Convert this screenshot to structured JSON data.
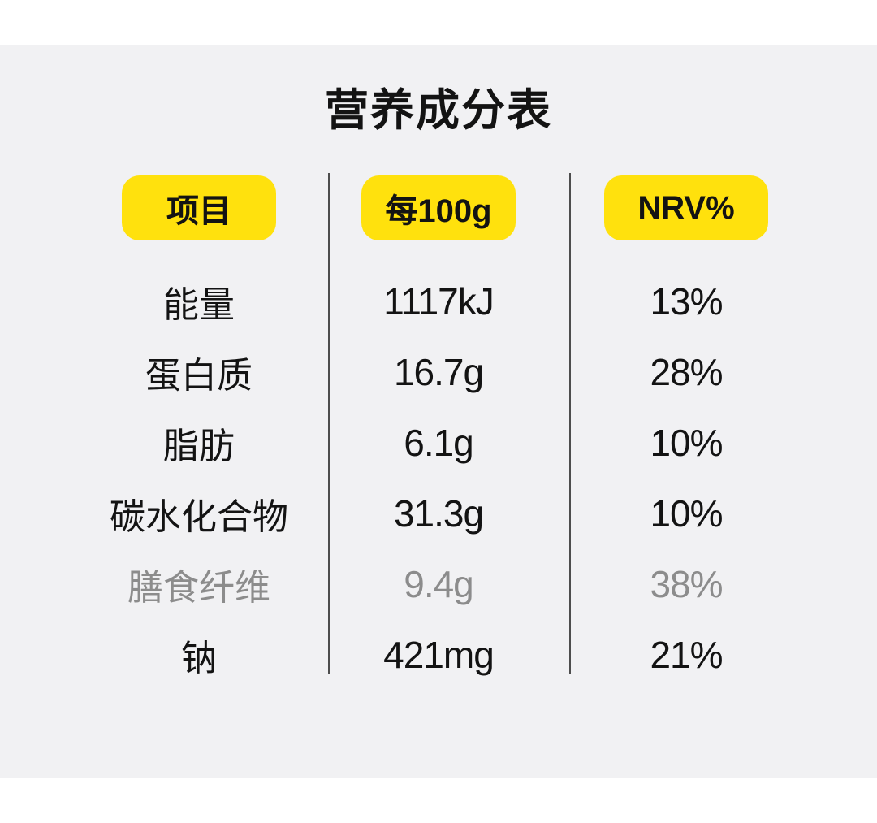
{
  "title": "营养成分表",
  "colors": {
    "accent_yellow": "#ffe10d",
    "panel_background": "#f1f1f3",
    "text": "#131313",
    "muted_text": "#8c8c8c",
    "divider": "#4d4d4d"
  },
  "table": {
    "headers": [
      {
        "label": "项目"
      },
      {
        "label": "每100g"
      },
      {
        "label": "NRV%"
      }
    ],
    "rows": [
      {
        "name": "能量",
        "per100g": "1117kJ",
        "nrv": "13%",
        "muted": false
      },
      {
        "name": "蛋白质",
        "per100g": "16.7g",
        "nrv": "28%",
        "muted": false
      },
      {
        "name": "脂肪",
        "per100g": "6.1g",
        "nrv": "10%",
        "muted": false
      },
      {
        "name": "碳水化合物",
        "per100g": "31.3g",
        "nrv": "10%",
        "muted": false
      },
      {
        "name": "膳食纤维",
        "per100g": "9.4g",
        "nrv": "38%",
        "muted": true
      },
      {
        "name": "钠",
        "per100g": "421mg",
        "nrv": "21%",
        "muted": false
      }
    ]
  }
}
